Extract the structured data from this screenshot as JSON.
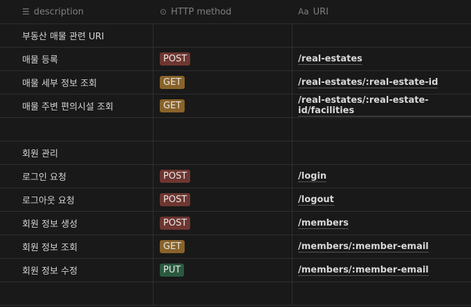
{
  "header": {
    "columns": [
      {
        "label": "description",
        "icon": "text-lines-icon"
      },
      {
        "label": "HTTP method",
        "icon": "select-circle-icon"
      },
      {
        "label": "URI",
        "icon": "aa-text-icon",
        "icon_text": "Aa"
      }
    ]
  },
  "method_colors": {
    "POST": "#6e3630",
    "GET": "#89632a",
    "PUT": "#2b593f"
  },
  "rows": [
    {
      "description": "부동산 매물 관련 URI",
      "method": "",
      "uri": ""
    },
    {
      "description": "매물 등록",
      "method": "POST",
      "uri": "/real-estates"
    },
    {
      "description": "매물 세부 정보 조회",
      "method": "GET",
      "uri": "/real-estates/:real-estate-id"
    },
    {
      "description": "매물 주변 편의시설 조회",
      "method": "GET",
      "uri": "/real-estates/:real-estate-id/facilities"
    },
    {
      "description": "",
      "method": "",
      "uri": ""
    },
    {
      "description": "회원 관리",
      "method": "",
      "uri": ""
    },
    {
      "description": "로그인 요청",
      "method": "POST",
      "uri": "/login"
    },
    {
      "description": "로그아웃 요청",
      "method": "POST",
      "uri": "/logout"
    },
    {
      "description": "회원 정보 생성",
      "method": "POST",
      "uri": "/members"
    },
    {
      "description": "회원 정보 조회",
      "method": "GET",
      "uri": "/members/:member-email"
    },
    {
      "description": "회원 정보 수정",
      "method": "PUT",
      "uri": "/members/:member-email"
    },
    {
      "description": "",
      "method": "",
      "uri": ""
    }
  ]
}
